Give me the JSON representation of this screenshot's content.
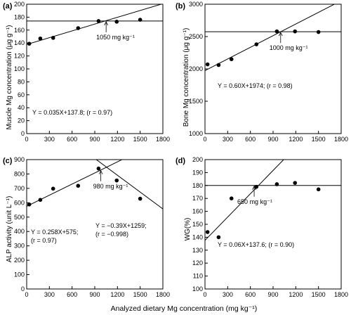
{
  "figure": {
    "xlabel_global": "Analyzed dietary Mg concentration (mg kg⁻¹)"
  },
  "chart_data": [
    {
      "panel": "(a)",
      "type": "scatter",
      "ylabel": "Muscle Mg concentration (μg g⁻¹)",
      "xlim": [
        0,
        1800
      ],
      "ylim": [
        0,
        200
      ],
      "xticks": [
        0,
        300,
        600,
        900,
        1200,
        1500,
        1800
      ],
      "yticks": [
        0,
        20,
        40,
        60,
        80,
        100,
        120,
        140,
        160,
        180,
        200
      ],
      "points": [
        {
          "x": 34,
          "y": 139
        },
        {
          "x": 180,
          "y": 147
        },
        {
          "x": 350,
          "y": 148
        },
        {
          "x": 680,
          "y": 163
        },
        {
          "x": 950,
          "y": 174
        },
        {
          "x": 1190,
          "y": 173
        },
        {
          "x": 1500,
          "y": 176
        }
      ],
      "regression": {
        "slope": 0.035,
        "intercept": 137.8
      },
      "plateau": 174,
      "breakpoint_x": 1050,
      "breakpoint_label": "1050 mg kg⁻¹",
      "equation_text": "Y = 0.035X+137.8; (r = 0.97)"
    },
    {
      "panel": "(b)",
      "type": "scatter",
      "ylabel": "Bone Mg concentration (μg g⁻¹)",
      "xlim": [
        0,
        1800
      ],
      "ylim": [
        1000,
        3000
      ],
      "xticks": [
        0,
        300,
        600,
        900,
        1200,
        1500,
        1800
      ],
      "yticks": [
        1000,
        1500,
        2000,
        2500,
        3000
      ],
      "points": [
        {
          "x": 34,
          "y": 2070
        },
        {
          "x": 180,
          "y": 2060
        },
        {
          "x": 350,
          "y": 2150
        },
        {
          "x": 680,
          "y": 2380
        },
        {
          "x": 950,
          "y": 2580
        },
        {
          "x": 1190,
          "y": 2580
        },
        {
          "x": 1500,
          "y": 2570
        }
      ],
      "regression": {
        "slope": 0.6,
        "intercept": 1974
      },
      "plateau": 2575,
      "breakpoint_x": 1000,
      "breakpoint_label": "1000 mg kg⁻¹",
      "equation_text": "Y = 0.60X+1974; (r = 0.98)"
    },
    {
      "panel": "(c)",
      "type": "scatter",
      "ylabel": "ALP activity (unit L⁻¹)",
      "xlim": [
        0,
        1800
      ],
      "ylim": [
        0,
        900
      ],
      "xticks": [
        0,
        300,
        600,
        900,
        1200,
        1500,
        1800
      ],
      "yticks": [
        0,
        100,
        200,
        300,
        400,
        500,
        600,
        700,
        800,
        900
      ],
      "points": [
        {
          "x": 34,
          "y": 588
        },
        {
          "x": 180,
          "y": 620
        },
        {
          "x": 350,
          "y": 698
        },
        {
          "x": 680,
          "y": 718
        },
        {
          "x": 950,
          "y": 838
        },
        {
          "x": 1190,
          "y": 755
        },
        {
          "x": 1500,
          "y": 628
        }
      ],
      "regression": {
        "slope": 0.258,
        "intercept": 575
      },
      "regression2": {
        "slope": -0.39,
        "intercept": 1259
      },
      "breakpoint_x": 980,
      "breakpoint_label": "980 mg kg⁻¹",
      "equation_text_1a": "Y = 0.258X+575;",
      "equation_text_1b": "(r = 0.97)",
      "equation_text_2a": "Y = −0.39X+1259;",
      "equation_text_2b": "(r = −0.998)"
    },
    {
      "panel": "(d)",
      "type": "scatter",
      "ylabel": "WG(%)",
      "xlim": [
        0,
        1800
      ],
      "ylim": [
        100,
        200
      ],
      "xticks": [
        0,
        300,
        600,
        900,
        1200,
        1500,
        1800
      ],
      "yticks": [
        100,
        110,
        120,
        130,
        140,
        150,
        160,
        170,
        180,
        190,
        200
      ],
      "points": [
        {
          "x": 34,
          "y": 144
        },
        {
          "x": 180,
          "y": 140
        },
        {
          "x": 350,
          "y": 170
        },
        {
          "x": 680,
          "y": 179
        },
        {
          "x": 950,
          "y": 181
        },
        {
          "x": 1190,
          "y": 182
        },
        {
          "x": 1500,
          "y": 177
        }
      ],
      "regression": {
        "slope": 0.06,
        "intercept": 137.6
      },
      "plateau": 180,
      "breakpoint_x": 650,
      "breakpoint_label": "650 mg kg⁻¹",
      "equation_text": "Y = 0.06X+137.6; (r = 0.90)"
    }
  ]
}
